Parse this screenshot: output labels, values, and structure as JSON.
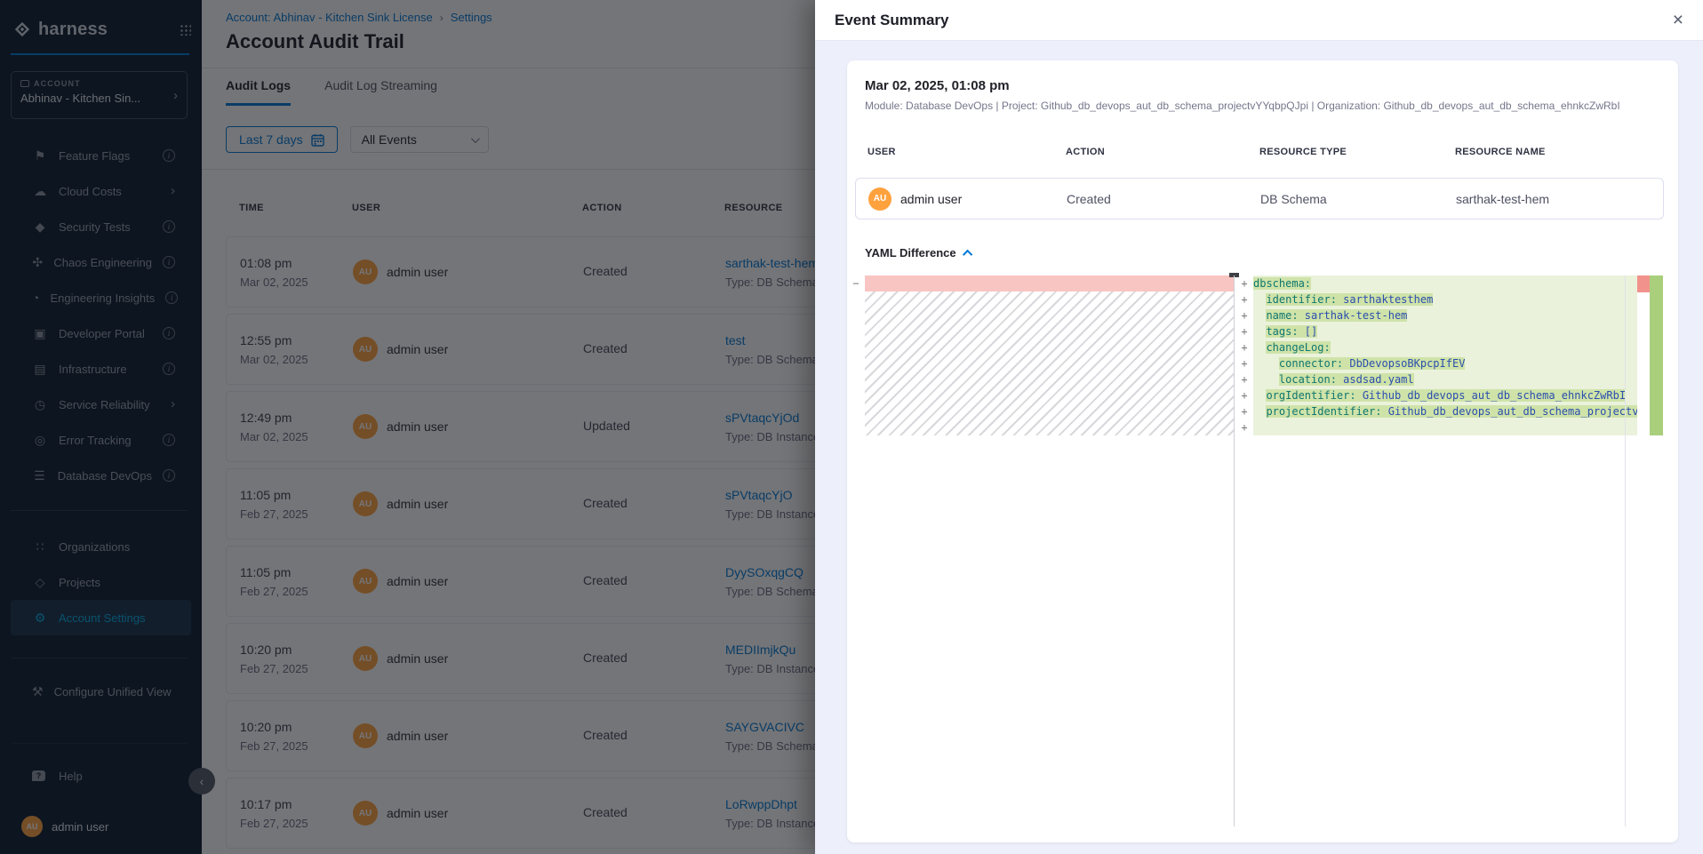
{
  "brand": {
    "name": "harness"
  },
  "sidebar": {
    "account_label": "ACCOUNT",
    "account_name": "Abhinav - Kitchen Sin...",
    "modules": [
      {
        "id": "feature-flags",
        "label": "Feature Flags",
        "icon": "flag-icon",
        "glyph": "⚑",
        "trailing": "info"
      },
      {
        "id": "cloud-costs",
        "label": "Cloud Costs",
        "icon": "cloud-icon",
        "glyph": "☁",
        "trailing": "chevron"
      },
      {
        "id": "security-tests",
        "label": "Security Tests",
        "icon": "shield-icon",
        "glyph": "◆",
        "trailing": "info"
      },
      {
        "id": "chaos-engineering",
        "label": "Chaos Engineering",
        "icon": "chaos-icon",
        "glyph": "✣",
        "trailing": "info"
      },
      {
        "id": "engineering-insights",
        "label": "Engineering Insights",
        "icon": "insights-icon",
        "glyph": "◔",
        "trailing": "info"
      },
      {
        "id": "developer-portal",
        "label": "Developer Portal",
        "icon": "portal-icon",
        "glyph": "▣",
        "trailing": "info"
      },
      {
        "id": "infrastructure",
        "label": "Infrastructure",
        "icon": "infrastructure-icon",
        "glyph": "▤",
        "trailing": "info"
      },
      {
        "id": "service-reliability",
        "label": "Service Reliability",
        "icon": "reliability-icon",
        "glyph": "◷",
        "trailing": "chevron"
      },
      {
        "id": "error-tracking",
        "label": "Error Tracking",
        "icon": "error-tracking-icon",
        "glyph": "◎",
        "trailing": "info"
      },
      {
        "id": "database-devops",
        "label": "Database DevOps",
        "icon": "database-icon",
        "glyph": "☰",
        "trailing": "info"
      }
    ],
    "general": [
      {
        "id": "organizations",
        "label": "Organizations",
        "icon": "organizations-icon",
        "glyph": "∷",
        "active": false
      },
      {
        "id": "projects",
        "label": "Projects",
        "icon": "projects-icon",
        "glyph": "◇",
        "active": false
      },
      {
        "id": "account-settings",
        "label": "Account Settings",
        "icon": "gear-icon",
        "glyph": "⚙",
        "active": true
      }
    ],
    "configure": {
      "label": "Configure Unified View",
      "icon": "wrench-icon",
      "glyph": "⚒"
    },
    "help_label": "Help",
    "user": {
      "initials": "AU",
      "name": "admin user"
    }
  },
  "breadcrumb": {
    "account": "Account: Abhinav - Kitchen Sink License",
    "separator": "›",
    "settings": "Settings"
  },
  "page": {
    "title": "Account Audit Trail"
  },
  "tabs": {
    "audit_logs": "Audit Logs",
    "audit_log_streaming": "Audit Log Streaming"
  },
  "filters": {
    "date_range": "Last 7 days",
    "event_type": "All Events"
  },
  "audit_table": {
    "columns": {
      "time": "TIME",
      "user": "USER",
      "action": "ACTION",
      "resource": "RESOURCE"
    },
    "rows": [
      {
        "time": "01:08 pm",
        "date": "Mar 02, 2025",
        "user": "admin user",
        "initials": "AU",
        "action": "Created",
        "resource": "sarthak-test-hem",
        "resource_type": "Type: DB Schema"
      },
      {
        "time": "12:55 pm",
        "date": "Mar 02, 2025",
        "user": "admin user",
        "initials": "AU",
        "action": "Created",
        "resource": "test",
        "resource_type": "Type: DB Schema"
      },
      {
        "time": "12:49 pm",
        "date": "Mar 02, 2025",
        "user": "admin user",
        "initials": "AU",
        "action": "Updated",
        "resource": "sPVtaqcYjOd",
        "resource_type": "Type: DB Instance"
      },
      {
        "time": "11:05 pm",
        "date": "Feb 27, 2025",
        "user": "admin user",
        "initials": "AU",
        "action": "Created",
        "resource": "sPVtaqcYjO",
        "resource_type": "Type: DB Instance"
      },
      {
        "time": "11:05 pm",
        "date": "Feb 27, 2025",
        "user": "admin user",
        "initials": "AU",
        "action": "Created",
        "resource": "DyySOxqgCQ",
        "resource_type": "Type: DB Schema"
      },
      {
        "time": "10:20 pm",
        "date": "Feb 27, 2025",
        "user": "admin user",
        "initials": "AU",
        "action": "Created",
        "resource": "MEDIImjkQu",
        "resource_type": "Type: DB Instance"
      },
      {
        "time": "10:20 pm",
        "date": "Feb 27, 2025",
        "user": "admin user",
        "initials": "AU",
        "action": "Created",
        "resource": "SAYGVACIVC",
        "resource_type": "Type: DB Schema"
      },
      {
        "time": "10:17 pm",
        "date": "Feb 27, 2025",
        "user": "admin user",
        "initials": "AU",
        "action": "Created",
        "resource": "LoRwppDhpt",
        "resource_type": "Type: DB Instance"
      }
    ]
  },
  "drawer": {
    "title": "Event Summary",
    "close_glyph": "×",
    "event_time": "Mar 02, 2025, 01:08 pm",
    "module_line": "Module: Database DevOps | Project: Github_db_devops_aut_db_schema_projectvYYqbpQJpi | Organization: Github_db_devops_aut_db_schema_ehnkcZwRbI",
    "columns": {
      "user": "USER",
      "action": "ACTION",
      "resource_type": "RESOURCE TYPE",
      "resource_name": "RESOURCE NAME"
    },
    "row": {
      "user": "admin user",
      "initials": "AU",
      "action": "Created",
      "resource_type": "DB Schema",
      "resource_name": "sarthak-test-hem"
    },
    "yaml_section_label": "YAML Difference",
    "diff": {
      "markers": {
        "add": "+",
        "del": "−"
      },
      "right_lines": [
        {
          "indent": "",
          "text": "dbschema:"
        },
        {
          "indent": "  ",
          "text": "identifier: sarthaktesthem"
        },
        {
          "indent": "  ",
          "text": "name: sarthak-test-hem"
        },
        {
          "indent": "  ",
          "text": "tags: []"
        },
        {
          "indent": "  ",
          "text": "changeLog:"
        },
        {
          "indent": "    ",
          "text": "connector: DbDevopsoBKpcpIfEV"
        },
        {
          "indent": "    ",
          "text": "location: asdsad.yaml"
        },
        {
          "indent": "  ",
          "text": "orgIdentifier: Github_db_devops_aut_db_schema_ehnkcZwRbI"
        },
        {
          "indent": "  ",
          "text": "projectIdentifier: Github_db_devops_aut_db_schema_projectvYYqbpQJpi"
        },
        {
          "indent": "",
          "text": ""
        }
      ]
    }
  },
  "colors": {
    "accent_blue": "#0278d5",
    "sidebar_bg": "#0b1b2e",
    "active_teal": "#00ade4",
    "avatar_orange": "#ffa23e",
    "drawer_body": "#edeffa",
    "diff_add_line": "#eaf2dc",
    "diff_add_word": "#cfe3a9",
    "diff_del_line": "#f9c5c3",
    "ruler_red": "#f2928c",
    "ruler_green": "#a9cf7c"
  }
}
